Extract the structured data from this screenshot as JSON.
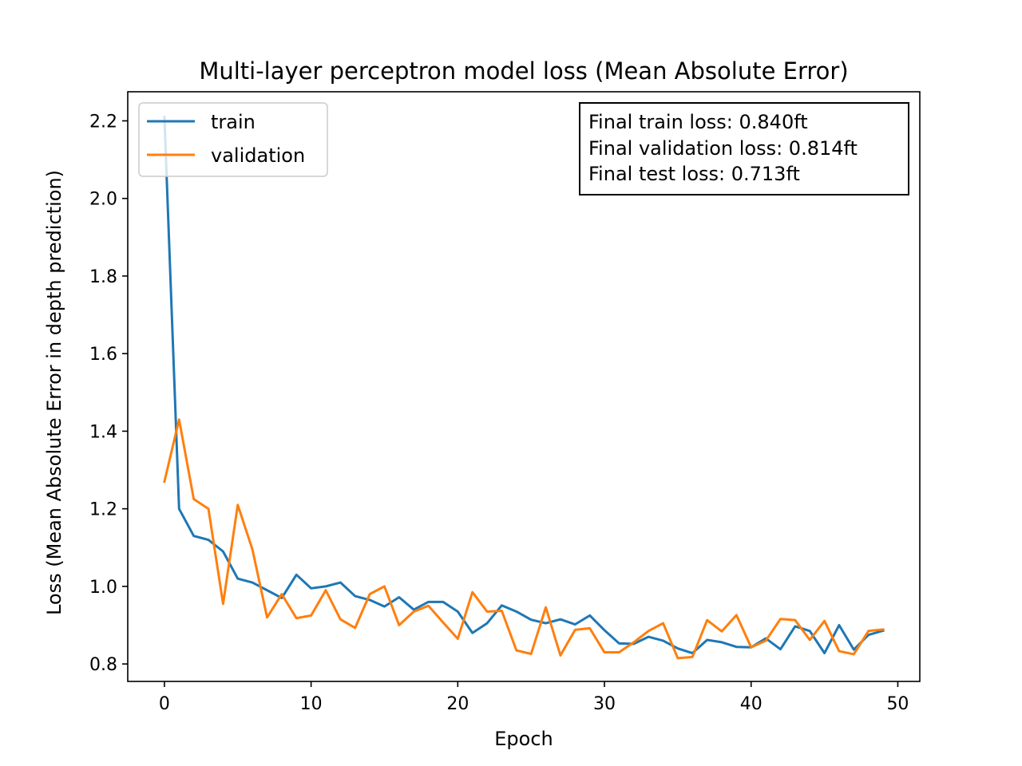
{
  "chart_data": {
    "type": "line",
    "title": "Multi-layer perceptron model loss (Mean Absolute Error)",
    "xlabel": "Epoch",
    "ylabel": "Loss (Mean Absolute Error in depth prediction)",
    "xlim": [
      -2.5,
      51.5
    ],
    "ylim": [
      0.755,
      2.275
    ],
    "xticks": [
      0,
      10,
      20,
      30,
      40,
      50
    ],
    "yticks": [
      0.8,
      1.0,
      1.2,
      1.4,
      1.6,
      1.8,
      2.0,
      2.2
    ],
    "grid": false,
    "legend_position": "upper-left",
    "annotation_position": "upper-right",
    "series": [
      {
        "name": "train",
        "color": "#1f77b4",
        "x": [
          0,
          1,
          2,
          3,
          4,
          5,
          6,
          7,
          8,
          9,
          10,
          11,
          12,
          13,
          14,
          15,
          16,
          17,
          18,
          19,
          20,
          21,
          22,
          23,
          24,
          25,
          26,
          27,
          28,
          29,
          30,
          31,
          32,
          33,
          34,
          35,
          36,
          37,
          38,
          39,
          40,
          41,
          42,
          43,
          44,
          45,
          46,
          47,
          48,
          49
        ],
        "values": [
          2.21,
          1.2,
          1.13,
          1.12,
          1.09,
          1.02,
          1.01,
          0.99,
          0.97,
          1.03,
          0.995,
          1.0,
          1.01,
          0.975,
          0.965,
          0.948,
          0.972,
          0.94,
          0.96,
          0.96,
          0.935,
          0.88,
          0.905,
          0.951,
          0.935,
          0.914,
          0.905,
          0.915,
          0.902,
          0.925,
          0.887,
          0.853,
          0.852,
          0.87,
          0.86,
          0.84,
          0.828,
          0.862,
          0.856,
          0.844,
          0.843,
          0.866,
          0.838,
          0.897,
          0.885,
          0.828,
          0.9,
          0.837,
          0.875,
          0.886
        ]
      },
      {
        "name": "validation",
        "color": "#ff7f0e",
        "x": [
          0,
          1,
          2,
          3,
          4,
          5,
          6,
          7,
          8,
          9,
          10,
          11,
          12,
          13,
          14,
          15,
          16,
          17,
          18,
          19,
          20,
          21,
          22,
          23,
          24,
          25,
          26,
          27,
          28,
          29,
          30,
          31,
          32,
          33,
          34,
          35,
          36,
          37,
          38,
          39,
          40,
          41,
          42,
          43,
          44,
          45,
          46,
          47,
          48,
          49
        ],
        "values": [
          1.27,
          1.43,
          1.225,
          1.2,
          0.955,
          1.21,
          1.095,
          0.92,
          0.98,
          0.918,
          0.925,
          0.99,
          0.915,
          0.893,
          0.98,
          1.0,
          0.9,
          0.935,
          0.95,
          0.907,
          0.865,
          0.985,
          0.935,
          0.937,
          0.835,
          0.826,
          0.946,
          0.822,
          0.888,
          0.892,
          0.83,
          0.83,
          0.856,
          0.885,
          0.905,
          0.815,
          0.818,
          0.913,
          0.884,
          0.926,
          0.843,
          0.86,
          0.916,
          0.913,
          0.862,
          0.911,
          0.833,
          0.825,
          0.885,
          0.889
        ]
      }
    ],
    "annotation_lines": [
      "Final train loss: 0.840ft",
      "Final validation loss: 0.814ft",
      "Final test loss: 0.713ft"
    ]
  }
}
